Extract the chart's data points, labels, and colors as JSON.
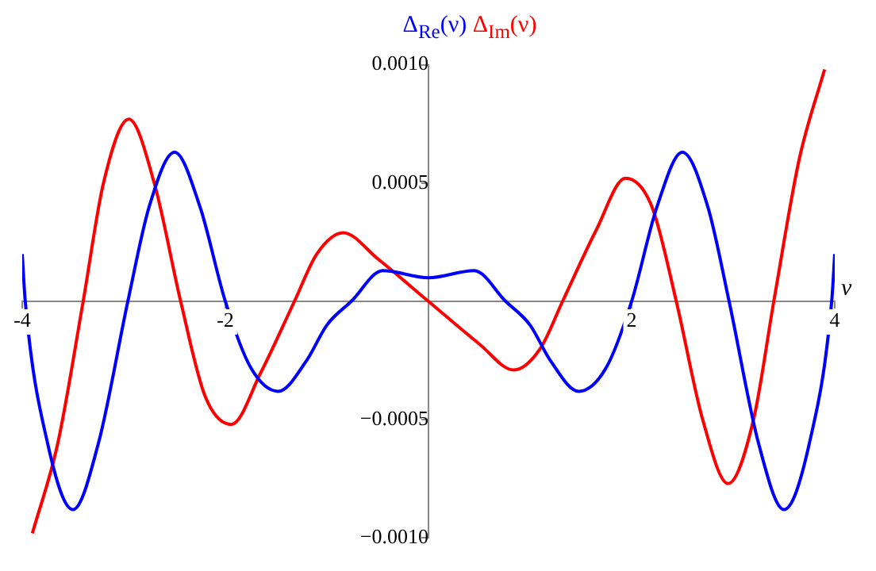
{
  "chart_data": {
    "type": "line",
    "xlabel": "ν",
    "xlim": [
      -4,
      4
    ],
    "ylim": [
      -0.001,
      0.001
    ],
    "xticks": [
      -4,
      -2,
      2,
      4
    ],
    "yticks": [
      {
        "value": -0.001,
        "label": "−0.0010"
      },
      {
        "value": -0.0005,
        "label": "−0.0005"
      },
      0.0005,
      {
        "value": 0.001,
        "label": "0.0010"
      }
    ],
    "grid": false,
    "legend": "top",
    "marker": "none",
    "line_style": "solid",
    "series": [
      {
        "name": "Δ$_{Re}$(ν)",
        "color": "#0000ff",
        "x": [
          -4,
          -3.97,
          -3.75,
          -3.5,
          -3.25,
          -2.96,
          -2.75,
          -2.5,
          -2.25,
          -2.0,
          -1.75,
          -1.48,
          -1.2,
          -1.0,
          -0.76,
          -0.45,
          0,
          0.45,
          0.76,
          1.0,
          1.2,
          1.48,
          1.75,
          2.0,
          2.25,
          2.5,
          2.75,
          2.96,
          3.25,
          3.5,
          3.75,
          3.97,
          4
        ],
        "values": [
          0.0002,
          0,
          -0.0006,
          -0.00088,
          -0.0006,
          0,
          0.0004,
          0.00063,
          0.0004,
          0,
          -0.00028,
          -0.00038,
          -0.00025,
          -0.0001,
          0,
          0.00013,
          0.0001,
          0.00013,
          0,
          -0.0001,
          -0.00025,
          -0.00038,
          -0.00028,
          0,
          0.0004,
          0.00063,
          0.0004,
          0,
          -0.0006,
          -0.00088,
          -0.0006,
          0,
          0.0002
        ]
      },
      {
        "name": "Δ$_{Im}$(ν)",
        "color": "#ff0000",
        "x": [
          -3.9,
          -3.65,
          -3.4,
          -3.2,
          -2.95,
          -2.7,
          -2.44,
          -2.2,
          -1.94,
          -1.65,
          -1.32,
          -1.1,
          -0.84,
          -0.5,
          0,
          0.5,
          0.84,
          1.1,
          1.32,
          1.65,
          1.94,
          2.2,
          2.44,
          2.7,
          2.95,
          3.2,
          3.4,
          3.65,
          3.9
        ],
        "values": [
          -0.00098,
          -0.0006,
          0,
          0.0005,
          0.00077,
          0.0005,
          0,
          -0.0004,
          -0.00052,
          -0.0003,
          0,
          0.0002,
          0.00029,
          0.00018,
          0,
          -0.00018,
          -0.00029,
          -0.0002,
          0,
          0.0003,
          0.00052,
          0.0004,
          0,
          -0.0005,
          -0.00077,
          -0.0005,
          0,
          0.0006,
          0.00098
        ]
      }
    ]
  }
}
